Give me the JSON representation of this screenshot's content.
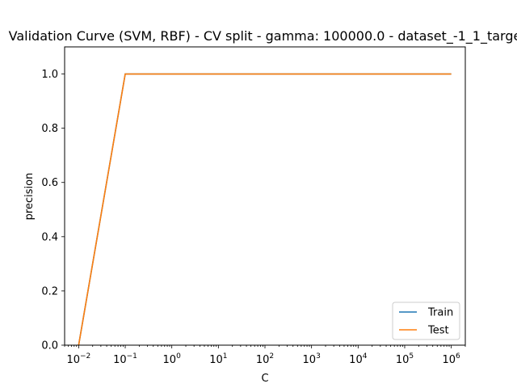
{
  "chart_data": {
    "type": "line",
    "title": "Validation Curve (SVM, RBF) - CV split - gamma: 100000.0 - dataset_-1_1_targe",
    "xlabel": "C",
    "ylabel": "precision",
    "xscale": "log",
    "xlim": [
      0.005,
      2000000
    ],
    "ylim": [
      0.0,
      1.1
    ],
    "x": [
      0.01,
      0.1,
      1,
      10,
      100,
      1000,
      10000,
      100000,
      1000000
    ],
    "x_tick_exponents": [
      "-2",
      "-1",
      "0",
      "1",
      "2",
      "3",
      "4",
      "5",
      "6"
    ],
    "y_ticks": [
      "0.0",
      "0.2",
      "0.4",
      "0.6",
      "0.8",
      "1.0"
    ],
    "series": [
      {
        "name": "Train",
        "color": "#1f77b4",
        "values": [
          0.0,
          1.0,
          1.0,
          1.0,
          1.0,
          1.0,
          1.0,
          1.0,
          1.0
        ]
      },
      {
        "name": "Test",
        "color": "#ff7f0e",
        "values": [
          0.0,
          1.0,
          1.0,
          1.0,
          1.0,
          1.0,
          1.0,
          1.0,
          1.0
        ]
      }
    ],
    "grid": false,
    "legend_position": "lower-right"
  }
}
